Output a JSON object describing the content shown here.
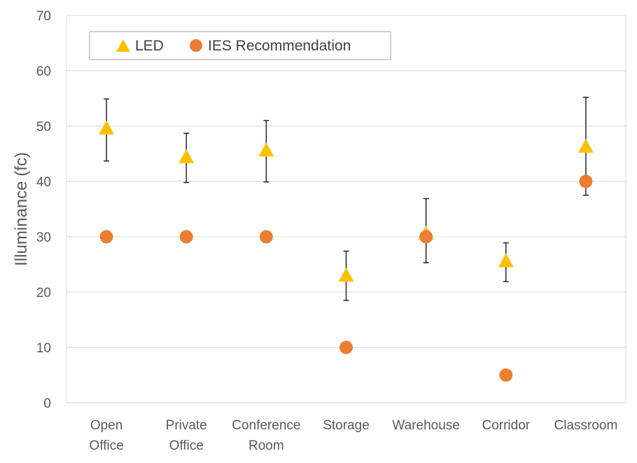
{
  "chart_data": {
    "type": "scatter",
    "title": "",
    "xlabel": "",
    "ylabel": "Illuminance (fc)",
    "ylim": [
      0,
      70
    ],
    "y_ticks": [
      0,
      10,
      20,
      30,
      40,
      50,
      60,
      70
    ],
    "grid": true,
    "legend_position": "top-left",
    "categories": [
      [
        "Open",
        "Office"
      ],
      [
        "Private",
        "Office"
      ],
      [
        "Conference",
        "Room"
      ],
      [
        "Storage"
      ],
      [
        "Warehouse"
      ],
      [
        "Corridor"
      ],
      [
        "Classroom"
      ]
    ],
    "series": [
      {
        "name": "LED",
        "marker": "triangle",
        "color": "#FFC000",
        "values": [
          49.5,
          44.3,
          45.5,
          22.9,
          30.5,
          25.5,
          46.2
        ],
        "error_low": [
          43.7,
          39.8,
          39.9,
          18.5,
          25.3,
          21.9,
          37.5
        ],
        "error_high": [
          54.9,
          48.7,
          51.0,
          27.4,
          36.9,
          28.9,
          55.2
        ]
      },
      {
        "name": "IES Recommendation",
        "marker": "circle",
        "color": "#ED7D31",
        "values": [
          30,
          30,
          30,
          10,
          30,
          5,
          40
        ]
      }
    ]
  }
}
